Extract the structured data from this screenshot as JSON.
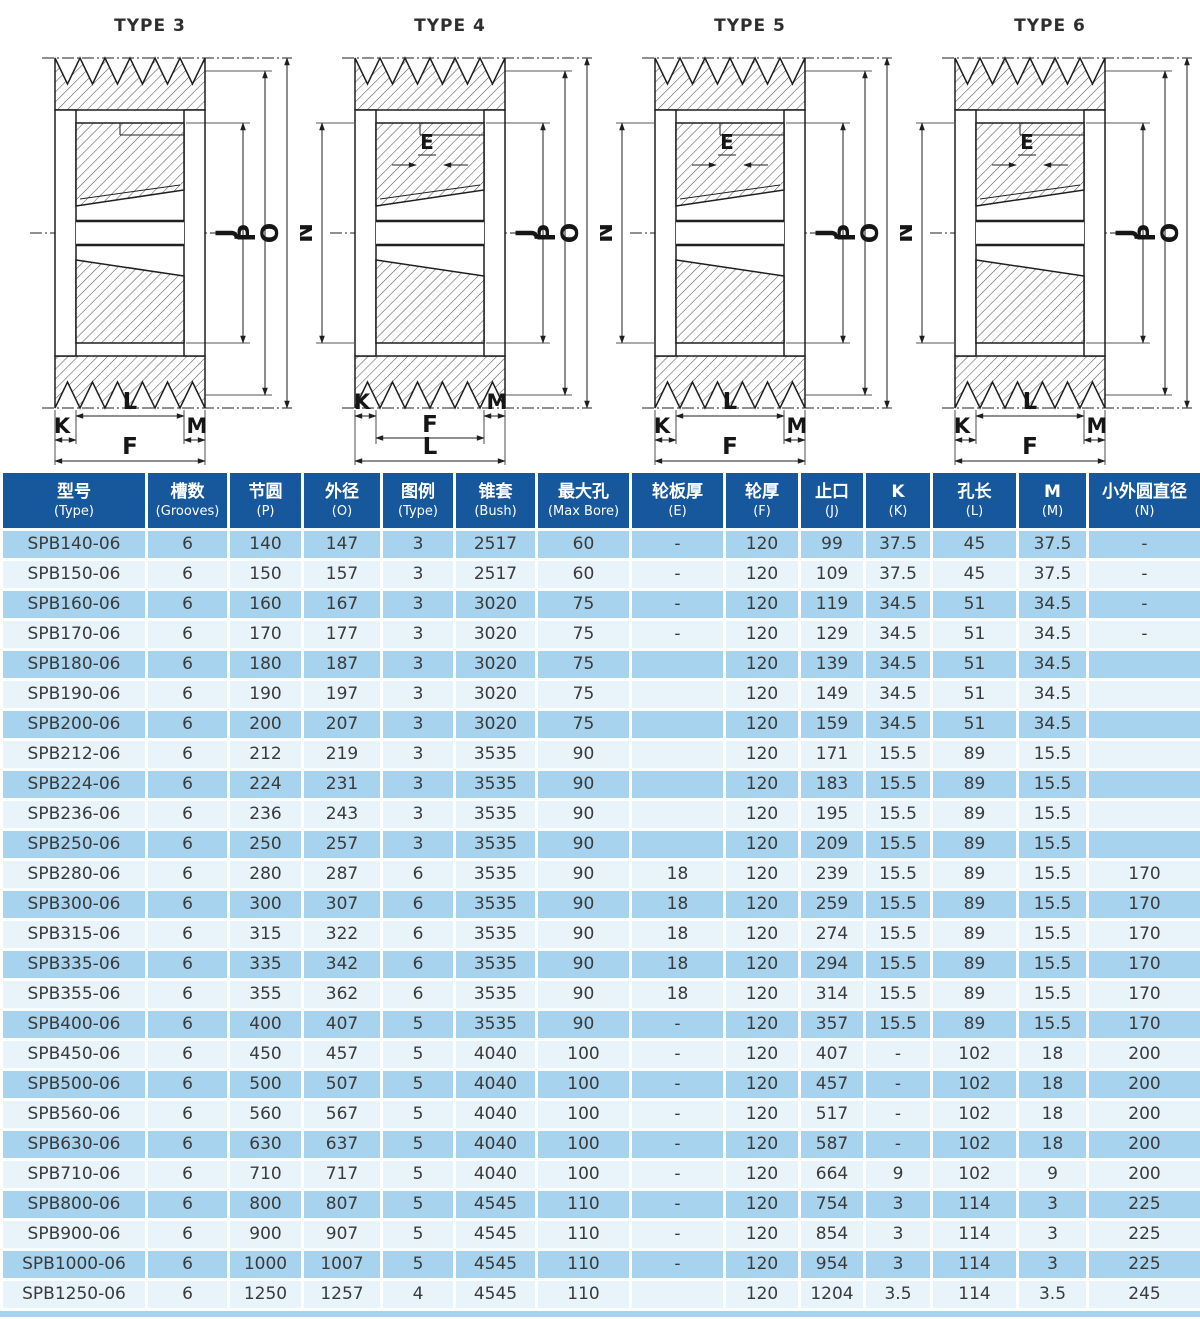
{
  "drawings": [
    {
      "title": "TYPE 3",
      "variant": 3,
      "labels": {
        "j": "J",
        "p": "P",
        "o": "O",
        "k": "K",
        "l": "L",
        "m": "M",
        "f": "F"
      }
    },
    {
      "title": "TYPE 4",
      "variant": 4,
      "labels": {
        "e": "E",
        "n": "N",
        "j": "J",
        "p": "P",
        "o": "O",
        "k": "K",
        "f": "F",
        "l": "L",
        "m": "M"
      }
    },
    {
      "title": "TYPE 5",
      "variant": 5,
      "labels": {
        "e": "E",
        "n": "N",
        "j": "J",
        "p": "P",
        "o": "O",
        "k": "K",
        "l": "L",
        "m": "M",
        "f": "F"
      }
    },
    {
      "title": "TYPE 6",
      "variant": 6,
      "labels": {
        "e": "E",
        "n": "N",
        "j": "J",
        "p": "P",
        "o": "O",
        "k": "K",
        "l": "L",
        "m": "M",
        "f": "F"
      }
    }
  ],
  "table": {
    "headers": [
      {
        "zh": "型号",
        "en": "(Type)"
      },
      {
        "zh": "槽数",
        "en": "(Grooves)"
      },
      {
        "zh": "节圆",
        "en": "(P)"
      },
      {
        "zh": "外径",
        "en": "(O)"
      },
      {
        "zh": "图例",
        "en": "(Type)"
      },
      {
        "zh": "锥套",
        "en": "(Bush)"
      },
      {
        "zh": "最大孔",
        "en": "(Max Bore)"
      },
      {
        "zh": "轮板厚",
        "en": "(E)"
      },
      {
        "zh": "轮厚",
        "en": "(F)"
      },
      {
        "zh": "止口",
        "en": "(J)"
      },
      {
        "zh": "K",
        "en": "(K)"
      },
      {
        "zh": "孔长",
        "en": "(L)"
      },
      {
        "zh": "M",
        "en": "(M)"
      },
      {
        "zh": "小外圆直径",
        "en": "(N)"
      }
    ],
    "rows": [
      [
        "SPB140-06",
        "6",
        "140",
        "147",
        "3",
        "2517",
        "60",
        "-",
        "120",
        "99",
        "37.5",
        "45",
        "37.5",
        "-"
      ],
      [
        "SPB150-06",
        "6",
        "150",
        "157",
        "3",
        "2517",
        "60",
        "-",
        "120",
        "109",
        "37.5",
        "45",
        "37.5",
        "-"
      ],
      [
        "SPB160-06",
        "6",
        "160",
        "167",
        "3",
        "3020",
        "75",
        "-",
        "120",
        "119",
        "34.5",
        "51",
        "34.5",
        "-"
      ],
      [
        "SPB170-06",
        "6",
        "170",
        "177",
        "3",
        "3020",
        "75",
        "-",
        "120",
        "129",
        "34.5",
        "51",
        "34.5",
        "-"
      ],
      [
        "SPB180-06",
        "6",
        "180",
        "187",
        "3",
        "3020",
        "75",
        "",
        "120",
        "139",
        "34.5",
        "51",
        "34.5",
        ""
      ],
      [
        "SPB190-06",
        "6",
        "190",
        "197",
        "3",
        "3020",
        "75",
        "",
        "120",
        "149",
        "34.5",
        "51",
        "34.5",
        ""
      ],
      [
        "SPB200-06",
        "6",
        "200",
        "207",
        "3",
        "3020",
        "75",
        "",
        "120",
        "159",
        "34.5",
        "51",
        "34.5",
        ""
      ],
      [
        "SPB212-06",
        "6",
        "212",
        "219",
        "3",
        "3535",
        "90",
        "",
        "120",
        "171",
        "15.5",
        "89",
        "15.5",
        ""
      ],
      [
        "SPB224-06",
        "6",
        "224",
        "231",
        "3",
        "3535",
        "90",
        "",
        "120",
        "183",
        "15.5",
        "89",
        "15.5",
        ""
      ],
      [
        "SPB236-06",
        "6",
        "236",
        "243",
        "3",
        "3535",
        "90",
        "",
        "120",
        "195",
        "15.5",
        "89",
        "15.5",
        ""
      ],
      [
        "SPB250-06",
        "6",
        "250",
        "257",
        "3",
        "3535",
        "90",
        "",
        "120",
        "209",
        "15.5",
        "89",
        "15.5",
        ""
      ],
      [
        "SPB280-06",
        "6",
        "280",
        "287",
        "6",
        "3535",
        "90",
        "18",
        "120",
        "239",
        "15.5",
        "89",
        "15.5",
        "170"
      ],
      [
        "SPB300-06",
        "6",
        "300",
        "307",
        "6",
        "3535",
        "90",
        "18",
        "120",
        "259",
        "15.5",
        "89",
        "15.5",
        "170"
      ],
      [
        "SPB315-06",
        "6",
        "315",
        "322",
        "6",
        "3535",
        "90",
        "18",
        "120",
        "274",
        "15.5",
        "89",
        "15.5",
        "170"
      ],
      [
        "SPB335-06",
        "6",
        "335",
        "342",
        "6",
        "3535",
        "90",
        "18",
        "120",
        "294",
        "15.5",
        "89",
        "15.5",
        "170"
      ],
      [
        "SPB355-06",
        "6",
        "355",
        "362",
        "6",
        "3535",
        "90",
        "18",
        "120",
        "314",
        "15.5",
        "89",
        "15.5",
        "170"
      ],
      [
        "SPB400-06",
        "6",
        "400",
        "407",
        "5",
        "3535",
        "90",
        "-",
        "120",
        "357",
        "15.5",
        "89",
        "15.5",
        "170"
      ],
      [
        "SPB450-06",
        "6",
        "450",
        "457",
        "5",
        "4040",
        "100",
        "-",
        "120",
        "407",
        "-",
        "102",
        "18",
        "200"
      ],
      [
        "SPB500-06",
        "6",
        "500",
        "507",
        "5",
        "4040",
        "100",
        "-",
        "120",
        "457",
        "-",
        "102",
        "18",
        "200"
      ],
      [
        "SPB560-06",
        "6",
        "560",
        "567",
        "5",
        "4040",
        "100",
        "-",
        "120",
        "517",
        "-",
        "102",
        "18",
        "200"
      ],
      [
        "SPB630-06",
        "6",
        "630",
        "637",
        "5",
        "4040",
        "100",
        "-",
        "120",
        "587",
        "-",
        "102",
        "18",
        "200"
      ],
      [
        "SPB710-06",
        "6",
        "710",
        "717",
        "5",
        "4040",
        "100",
        "-",
        "120",
        "664",
        "9",
        "102",
        "9",
        "200"
      ],
      [
        "SPB800-06",
        "6",
        "800",
        "807",
        "5",
        "4545",
        "110",
        "-",
        "120",
        "754",
        "3",
        "114",
        "3",
        "225"
      ],
      [
        "SPB900-06",
        "6",
        "900",
        "907",
        "5",
        "4545",
        "110",
        "-",
        "120",
        "854",
        "3",
        "114",
        "3",
        "225"
      ],
      [
        "SPB1000-06",
        "6",
        "1000",
        "1007",
        "5",
        "4545",
        "110",
        "-",
        "120",
        "954",
        "3",
        "114",
        "3",
        "225"
      ],
      [
        "SPB1250-06",
        "6",
        "1250",
        "1257",
        "4",
        "4545",
        "110",
        "",
        "120",
        "1204",
        "3.5",
        "114",
        "3.5",
        "245"
      ]
    ]
  },
  "colors": {
    "header_bg": "#17579b",
    "row_dark": "#a7d3ee",
    "row_light": "#e9f3fa",
    "line": "#1f1f1f"
  }
}
